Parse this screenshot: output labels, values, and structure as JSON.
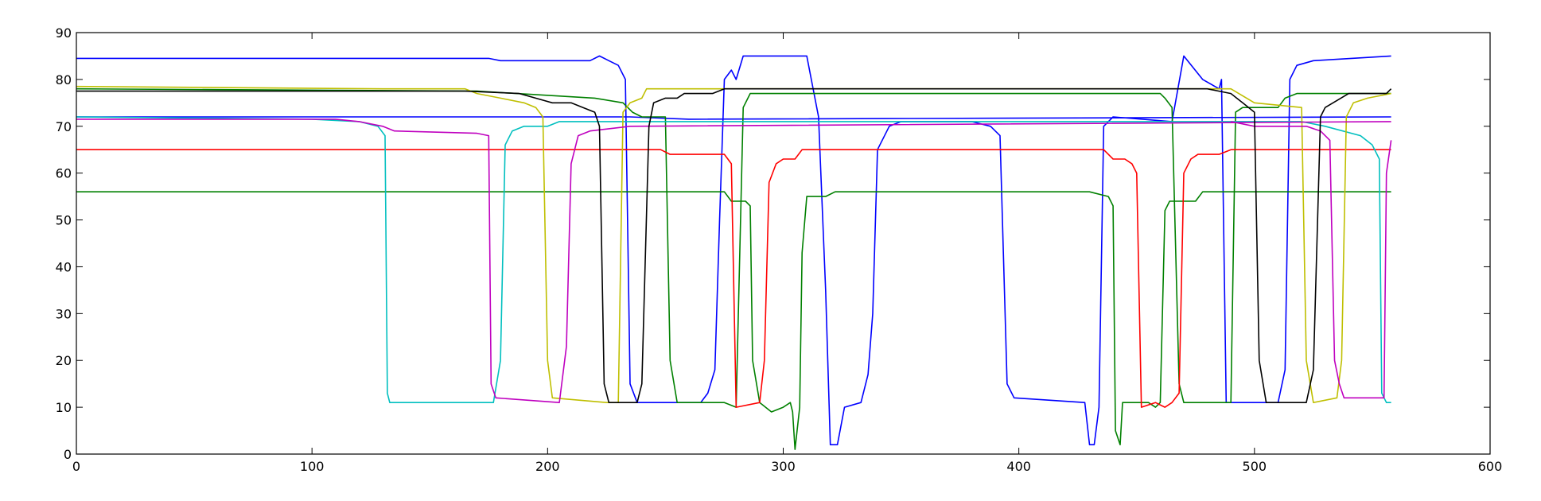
{
  "chart_data": {
    "type": "line",
    "title": "",
    "xlabel": "",
    "ylabel": "",
    "xlim": [
      0,
      600
    ],
    "ylim": [
      0,
      90
    ],
    "grid": false,
    "xticks": [
      0,
      100,
      200,
      300,
      400,
      500,
      600
    ],
    "yticks": [
      0,
      10,
      20,
      30,
      40,
      50,
      60,
      70,
      80,
      90
    ],
    "xtick_labels": [
      "0",
      "100",
      "200",
      "300",
      "400",
      "500",
      "600"
    ],
    "ytick_labels": [
      "0",
      "10",
      "20",
      "30",
      "40",
      "50",
      "60",
      "70",
      "80",
      "90"
    ],
    "series": [
      {
        "color": "#0000ff",
        "points": [
          [
            0,
            84.5
          ],
          [
            175,
            84.5
          ],
          [
            180,
            84
          ],
          [
            218,
            84
          ],
          [
            222,
            85
          ],
          [
            226,
            84
          ],
          [
            230,
            83
          ],
          [
            233,
            80
          ],
          [
            235,
            15
          ],
          [
            238,
            11
          ],
          [
            265,
            11
          ],
          [
            268,
            13
          ],
          [
            271,
            18
          ],
          [
            273,
            50
          ],
          [
            275,
            80
          ],
          [
            278,
            82
          ],
          [
            280,
            80
          ],
          [
            283,
            85
          ],
          [
            310,
            85
          ],
          [
            315,
            72
          ],
          [
            318,
            35
          ],
          [
            320,
            2
          ],
          [
            323,
            2
          ],
          [
            326,
            10
          ],
          [
            333,
            11
          ],
          [
            336,
            17
          ],
          [
            338,
            30
          ],
          [
            340,
            65
          ],
          [
            345,
            70
          ],
          [
            350,
            71
          ],
          [
            380,
            71
          ],
          [
            388,
            70
          ],
          [
            392,
            68
          ],
          [
            395,
            15
          ],
          [
            398,
            12
          ],
          [
            428,
            11
          ],
          [
            430,
            2
          ],
          [
            432,
            2
          ],
          [
            434,
            10
          ],
          [
            436,
            70
          ],
          [
            440,
            72
          ],
          [
            465,
            71
          ],
          [
            470,
            85
          ],
          [
            478,
            80
          ],
          [
            485,
            78
          ],
          [
            486,
            80
          ],
          [
            488,
            11
          ],
          [
            510,
            11
          ],
          [
            513,
            18
          ],
          [
            515,
            80
          ],
          [
            518,
            83
          ],
          [
            525,
            84
          ],
          [
            558,
            85
          ]
        ]
      },
      {
        "color": "#0000ff",
        "points": [
          [
            0,
            72
          ],
          [
            235,
            72
          ],
          [
            260,
            71.5
          ],
          [
            558,
            72
          ]
        ]
      },
      {
        "color": "#008000",
        "points": [
          [
            0,
            78
          ],
          [
            170,
            77.5
          ],
          [
            220,
            76
          ],
          [
            232,
            75
          ],
          [
            236,
            73
          ],
          [
            240,
            72
          ],
          [
            245,
            72
          ],
          [
            250,
            72
          ],
          [
            252,
            20
          ],
          [
            255,
            11
          ],
          [
            275,
            11
          ],
          [
            280,
            10
          ],
          [
            283,
            74
          ],
          [
            286,
            77
          ],
          [
            290,
            77
          ],
          [
            460,
            77
          ],
          [
            462,
            76
          ],
          [
            465,
            74
          ],
          [
            468,
            15
          ],
          [
            470,
            11
          ],
          [
            490,
            11
          ],
          [
            492,
            73
          ],
          [
            495,
            74
          ],
          [
            510,
            74
          ],
          [
            513,
            76
          ],
          [
            518,
            77
          ],
          [
            558,
            77
          ]
        ]
      },
      {
        "color": "#008000",
        "points": [
          [
            0,
            56
          ],
          [
            275,
            56
          ],
          [
            278,
            54
          ],
          [
            284,
            54
          ],
          [
            286,
            53
          ],
          [
            287,
            20
          ],
          [
            290,
            11
          ],
          [
            295,
            9
          ],
          [
            300,
            10
          ],
          [
            303,
            11
          ],
          [
            304,
            9
          ],
          [
            305,
            1
          ],
          [
            307,
            10
          ],
          [
            308,
            43
          ],
          [
            310,
            55
          ],
          [
            318,
            55
          ],
          [
            322,
            56
          ],
          [
            430,
            56
          ],
          [
            438,
            55
          ],
          [
            440,
            53
          ],
          [
            441,
            5
          ],
          [
            443,
            2
          ],
          [
            444,
            11
          ],
          [
            455,
            11
          ],
          [
            458,
            10
          ],
          [
            460,
            11
          ],
          [
            462,
            52
          ],
          [
            464,
            54
          ],
          [
            475,
            54
          ],
          [
            478,
            56
          ],
          [
            558,
            56
          ]
        ]
      },
      {
        "color": "#ff0000",
        "points": [
          [
            0,
            65
          ],
          [
            248,
            65
          ],
          [
            252,
            64
          ],
          [
            275,
            64
          ],
          [
            278,
            62
          ],
          [
            280,
            10
          ],
          [
            290,
            11
          ],
          [
            292,
            20
          ],
          [
            294,
            58
          ],
          [
            297,
            62
          ],
          [
            300,
            63
          ],
          [
            305,
            63
          ],
          [
            308,
            65
          ],
          [
            430,
            65
          ],
          [
            436,
            65
          ],
          [
            440,
            63
          ],
          [
            445,
            63
          ],
          [
            448,
            62
          ],
          [
            450,
            60
          ],
          [
            452,
            10
          ],
          [
            458,
            11
          ],
          [
            462,
            10
          ],
          [
            465,
            11
          ],
          [
            468,
            13
          ],
          [
            470,
            60
          ],
          [
            473,
            63
          ],
          [
            476,
            64
          ],
          [
            485,
            64
          ],
          [
            490,
            65
          ],
          [
            558,
            65
          ]
        ]
      },
      {
        "color": "#00bfbf",
        "points": [
          [
            0,
            72
          ],
          [
            100,
            71.5
          ],
          [
            120,
            71
          ],
          [
            128,
            70
          ],
          [
            131,
            68
          ],
          [
            132,
            13
          ],
          [
            133,
            11
          ],
          [
            172,
            11
          ],
          [
            177,
            11
          ],
          [
            180,
            20
          ],
          [
            182,
            66
          ],
          [
            185,
            69
          ],
          [
            190,
            70
          ],
          [
            200,
            70
          ],
          [
            205,
            71
          ],
          [
            230,
            71
          ],
          [
            235,
            71
          ],
          [
            340,
            71
          ],
          [
            470,
            71
          ],
          [
            520,
            71
          ],
          [
            530,
            70
          ],
          [
            545,
            68
          ],
          [
            550,
            66
          ],
          [
            553,
            63
          ],
          [
            554,
            13
          ],
          [
            556,
            11
          ],
          [
            558,
            11
          ]
        ]
      },
      {
        "color": "#bfbf00",
        "points": [
          [
            0,
            78.5
          ],
          [
            130,
            78
          ],
          [
            165,
            78
          ],
          [
            170,
            77
          ],
          [
            180,
            76
          ],
          [
            190,
            75
          ],
          [
            195,
            74
          ],
          [
            198,
            72
          ],
          [
            200,
            20
          ],
          [
            202,
            12
          ],
          [
            225,
            11
          ],
          [
            230,
            11
          ],
          [
            232,
            73
          ],
          [
            235,
            75
          ],
          [
            240,
            76
          ],
          [
            242,
            78
          ],
          [
            275,
            78
          ],
          [
            490,
            78
          ],
          [
            500,
            75
          ],
          [
            520,
            74
          ],
          [
            522,
            20
          ],
          [
            525,
            11
          ],
          [
            535,
            12
          ],
          [
            537,
            20
          ],
          [
            539,
            72
          ],
          [
            542,
            75
          ],
          [
            548,
            76
          ],
          [
            558,
            77
          ]
        ]
      },
      {
        "color": "#bf00bf",
        "points": [
          [
            0,
            71.5
          ],
          [
            110,
            71.5
          ],
          [
            120,
            71
          ],
          [
            130,
            70
          ],
          [
            135,
            69
          ],
          [
            170,
            68.5
          ],
          [
            175,
            68
          ],
          [
            176,
            15
          ],
          [
            178,
            12
          ],
          [
            205,
            11
          ],
          [
            208,
            23
          ],
          [
            210,
            62
          ],
          [
            213,
            68
          ],
          [
            218,
            69
          ],
          [
            235,
            70
          ],
          [
            558,
            71
          ]
        ]
      },
      {
        "color": "#bf00bf",
        "points": [
          [
            490,
            71
          ],
          [
            500,
            70
          ],
          [
            510,
            70
          ],
          [
            522,
            70
          ],
          [
            528,
            69
          ],
          [
            532,
            67
          ],
          [
            534,
            20
          ],
          [
            536,
            15
          ],
          [
            538,
            12
          ],
          [
            555,
            12
          ],
          [
            556,
            60
          ],
          [
            558,
            67
          ]
        ]
      },
      {
        "color": "#000000",
        "points": [
          [
            0,
            77.5
          ],
          [
            165,
            77.5
          ],
          [
            188,
            77
          ],
          [
            202,
            75
          ],
          [
            210,
            75
          ],
          [
            215,
            74
          ],
          [
            220,
            73
          ],
          [
            222,
            70
          ],
          [
            224,
            15
          ],
          [
            226,
            11
          ],
          [
            232,
            11
          ],
          [
            238,
            11
          ],
          [
            240,
            15
          ],
          [
            243,
            70
          ],
          [
            245,
            75
          ],
          [
            250,
            76
          ],
          [
            255,
            76
          ],
          [
            258,
            77
          ],
          [
            270,
            77
          ],
          [
            275,
            78
          ],
          [
            480,
            78
          ],
          [
            490,
            77
          ],
          [
            495,
            75
          ],
          [
            500,
            73
          ],
          [
            502,
            20
          ],
          [
            505,
            11
          ],
          [
            522,
            11
          ],
          [
            525,
            18
          ],
          [
            528,
            72
          ],
          [
            530,
            74
          ],
          [
            540,
            77
          ],
          [
            556,
            77
          ],
          [
            558,
            78
          ]
        ]
      }
    ]
  }
}
